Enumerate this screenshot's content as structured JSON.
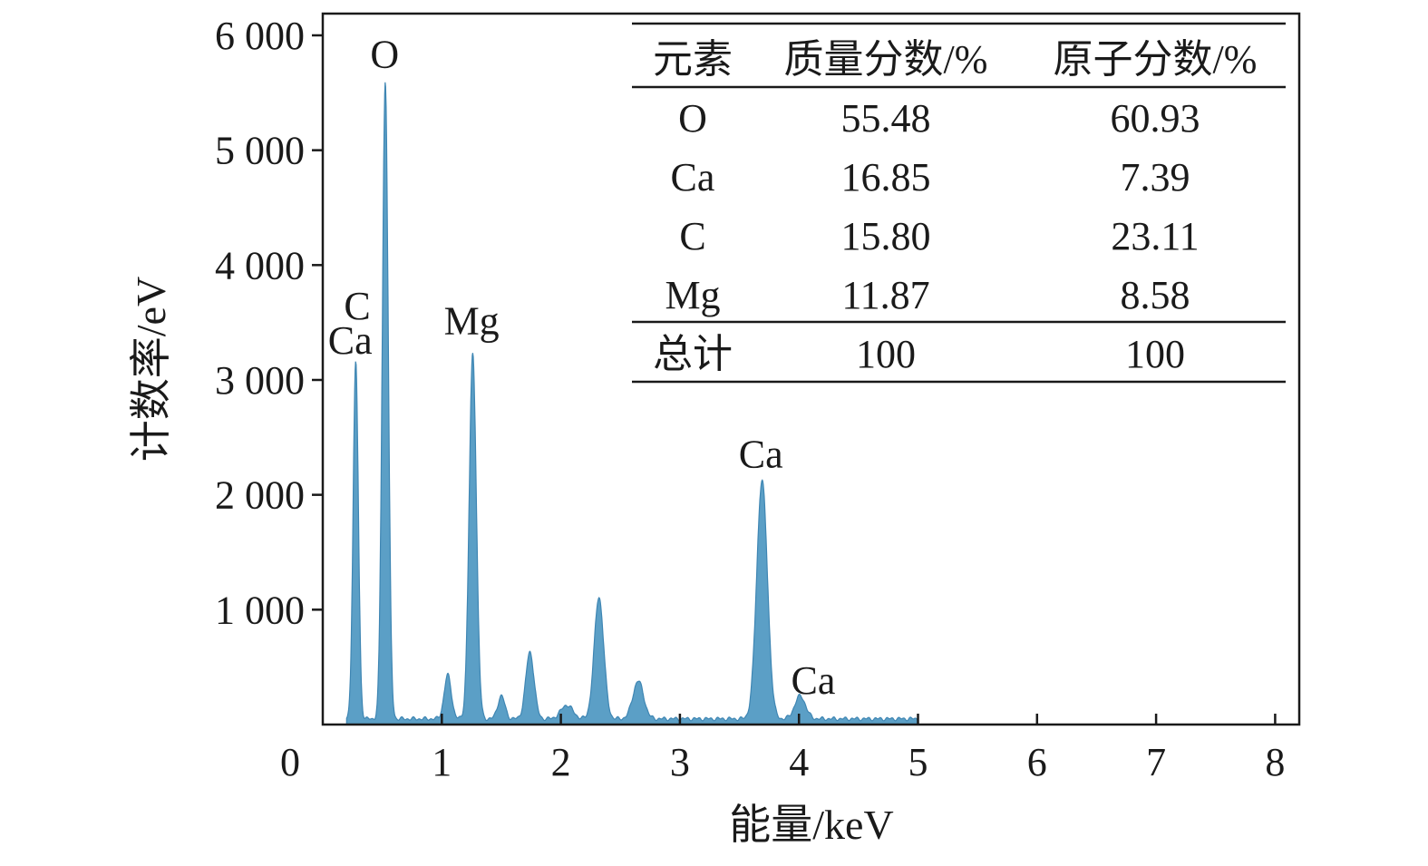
{
  "chart_data": {
    "type": "area",
    "xlabel": "能量/keV",
    "ylabel": "计数率/eV",
    "xlim": [
      0,
      8
    ],
    "ylim": [
      0,
      6000
    ],
    "x_ticks": [
      "0",
      "1",
      "2",
      "3",
      "4",
      "5",
      "6",
      "7",
      "8"
    ],
    "y_ticks": [
      "1 000",
      "2 000",
      "3 000",
      "4 000",
      "5 000",
      "6 000"
    ],
    "y_tick_values": [
      1000,
      2000,
      3000,
      4000,
      5000,
      6000
    ],
    "series_color": "#5b9fc6",
    "spectrum_range": [
      0.2,
      5.0
    ],
    "baseline": 50,
    "peaks": [
      {
        "x": 0.277,
        "height": 3100,
        "width": 0.022
      },
      {
        "x": 0.525,
        "height": 5550,
        "width": 0.025
      },
      {
        "x": 1.05,
        "height": 380,
        "width": 0.03
      },
      {
        "x": 1.26,
        "height": 3180,
        "width": 0.03
      },
      {
        "x": 1.5,
        "height": 200,
        "width": 0.03
      },
      {
        "x": 1.74,
        "height": 580,
        "width": 0.035
      },
      {
        "x": 2.05,
        "height": 120,
        "width": 0.05
      },
      {
        "x": 2.32,
        "height": 1060,
        "width": 0.04
      },
      {
        "x": 2.65,
        "height": 330,
        "width": 0.045
      },
      {
        "x": 3.69,
        "height": 2080,
        "width": 0.045
      },
      {
        "x": 4.01,
        "height": 200,
        "width": 0.045
      }
    ],
    "peak_labels": [
      {
        "text": "O",
        "x": 0.52,
        "y": 5720
      },
      {
        "text": "C",
        "x": 0.29,
        "y": 3530
      },
      {
        "text": "Ca",
        "x": 0.23,
        "y": 3230
      },
      {
        "text": "Mg",
        "x": 1.25,
        "y": 3400
      },
      {
        "text": "Ca",
        "x": 3.68,
        "y": 2240
      },
      {
        "text": "Ca",
        "x": 4.12,
        "y": 270
      }
    ],
    "table": {
      "headers": [
        "元素",
        "质量分数/%",
        "原子分数/%"
      ],
      "rows": [
        [
          "O",
          "55.48",
          "60.93"
        ],
        [
          "Ca",
          "16.85",
          "7.39"
        ],
        [
          "C",
          "15.80",
          "23.11"
        ],
        [
          "Mg",
          "11.87",
          "8.58"
        ]
      ],
      "total": [
        "总计",
        "100",
        "100"
      ]
    }
  }
}
